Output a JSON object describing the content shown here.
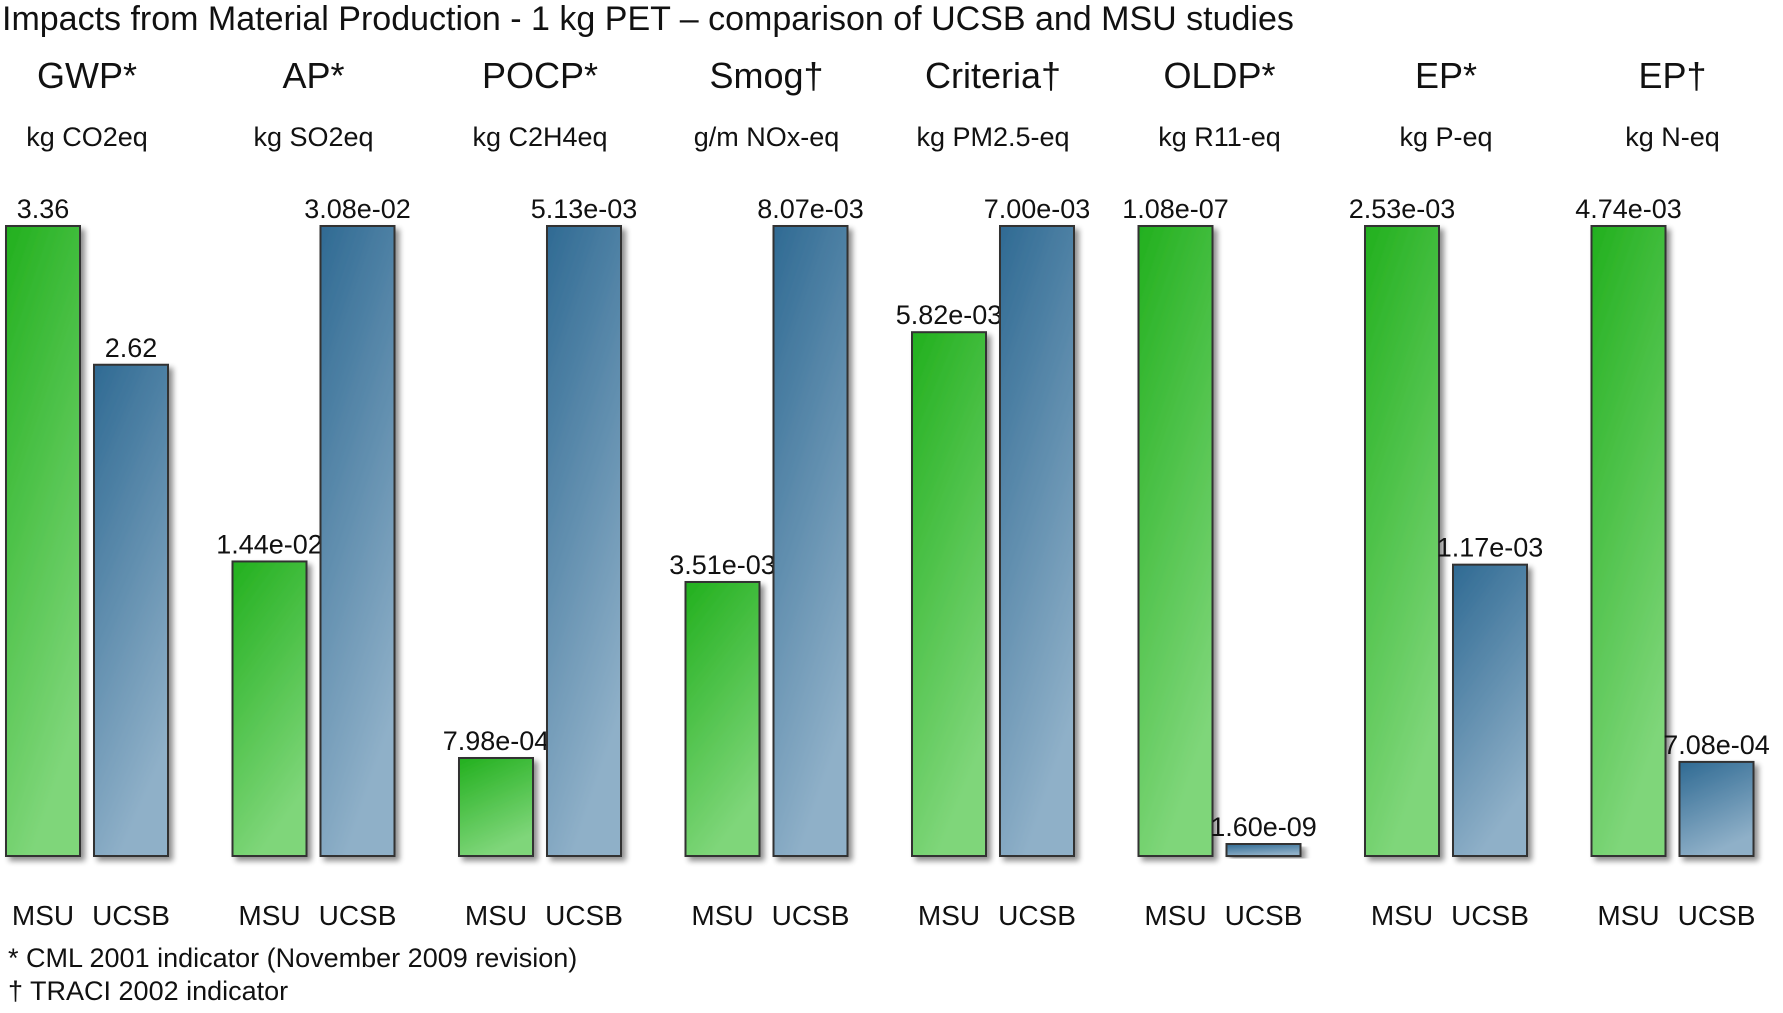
{
  "title": "Impacts from Material Production - 1 kg PET – comparison of UCSB and MSU studies",
  "colors": {
    "msu_top": "#22b01e",
    "msu_bottom": "#7fd67a",
    "ucsb_top": "#2f6a93",
    "ucsb_bottom": "#8fb0c8",
    "bar_outline": "#333333"
  },
  "chart_data": {
    "type": "bar",
    "layout": "small-multiples",
    "categories": [
      "MSU",
      "UCSB"
    ],
    "panels": [
      {
        "name": "GWP*",
        "unit": "kg CO2eq",
        "values": [
          3.36,
          2.62
        ],
        "labels": [
          "3.36",
          "2.62"
        ]
      },
      {
        "name": "AP*",
        "unit": "kg SO2eq",
        "values": [
          0.0144,
          0.0308
        ],
        "labels": [
          "1.44e-02",
          "3.08e-02"
        ]
      },
      {
        "name": "POCP*",
        "unit": "kg C2H4eq",
        "values": [
          0.000798,
          0.00513
        ],
        "labels": [
          "7.98e-04",
          "5.13e-03"
        ]
      },
      {
        "name": "Smog†",
        "unit": "g/m NOx-eq",
        "values": [
          0.00351,
          0.00807
        ],
        "labels": [
          "3.51e-03",
          "8.07e-03"
        ]
      },
      {
        "name": "Criteria†",
        "unit": "kg PM2.5-eq",
        "values": [
          0.00582,
          0.007
        ],
        "labels": [
          "5.82e-03",
          "7.00e-03"
        ]
      },
      {
        "name": "OLDP*",
        "unit": "kg R11-eq",
        "values": [
          1.08e-07,
          1.6e-09
        ],
        "labels": [
          "1.08e-07",
          "1.60e-09"
        ]
      },
      {
        "name": "EP*",
        "unit": "kg P-eq",
        "values": [
          0.00253,
          0.00117
        ],
        "labels": [
          "2.53e-03",
          "1.17e-03"
        ]
      },
      {
        "name": "EP†",
        "unit": "kg N-eq",
        "values": [
          0.00474,
          0.000708
        ],
        "labels": [
          "4.74e-03",
          "7.08e-04"
        ]
      }
    ],
    "scale": "each panel scaled to its own maximum value"
  },
  "footnotes": [
    "* CML 2001 indicator (November 2009 revision)",
    "† TRACI 2002 indicator"
  ]
}
